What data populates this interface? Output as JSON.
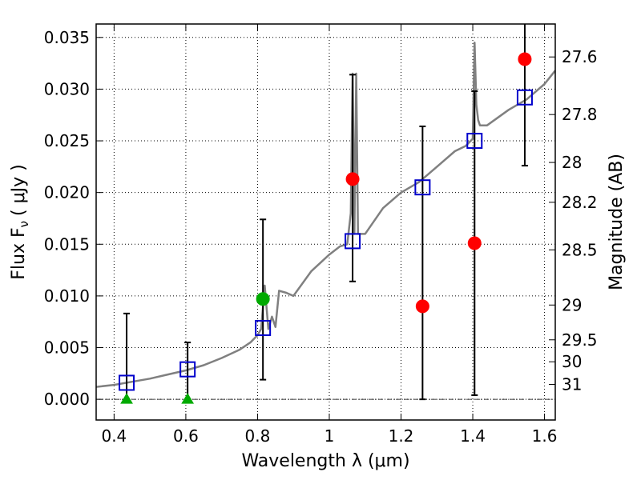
{
  "chart_data": {
    "type": "scatter",
    "xlabel": "Wavelength  λ (μm)",
    "ylabel": "Flux  F",
    "ylabel_sub": "ν",
    "ylabel_unit": "( μJy )",
    "y2label": "Magnitude (AB)",
    "xlim": [
      0.35,
      1.63
    ],
    "ylim": [
      -0.002,
      0.0363
    ],
    "grid": true,
    "x_ticks": [
      0.4,
      0.6,
      0.8,
      1.0,
      1.2,
      1.4,
      1.6
    ],
    "x_tick_labels": [
      "0.4",
      "0.6",
      "0.8",
      "1",
      "1.2",
      "1.4",
      "1.6"
    ],
    "y_ticks": [
      0.0,
      0.005,
      0.01,
      0.015,
      0.02,
      0.025,
      0.03,
      0.035
    ],
    "y_tick_labels": [
      "0.000",
      "0.005",
      "0.010",
      "0.015",
      "0.020",
      "0.025",
      "0.030",
      "0.035"
    ],
    "y2_tick_labels": [
      "27.6",
      "27.8",
      "28",
      "28.2",
      "28.5",
      "29",
      "29.5",
      "30",
      "31"
    ],
    "model_spectrum": {
      "color": "#808080",
      "x": [
        0.35,
        0.4,
        0.45,
        0.5,
        0.55,
        0.6,
        0.65,
        0.7,
        0.75,
        0.78,
        0.8,
        0.81,
        0.82,
        0.83,
        0.84,
        0.85,
        0.86,
        0.88,
        0.9,
        0.95,
        1.0,
        1.03,
        1.05,
        1.06,
        1.065,
        1.07,
        1.075,
        1.08,
        1.1,
        1.15,
        1.2,
        1.25,
        1.3,
        1.35,
        1.38,
        1.4,
        1.405,
        1.41,
        1.415,
        1.42,
        1.44,
        1.5,
        1.55,
        1.6,
        1.63
      ],
      "y": [
        0.0012,
        0.0014,
        0.0017,
        0.002,
        0.0024,
        0.0028,
        0.0033,
        0.004,
        0.0048,
        0.0055,
        0.0062,
        0.0068,
        0.011,
        0.0068,
        0.008,
        0.007,
        0.0105,
        0.0103,
        0.01,
        0.0124,
        0.014,
        0.0148,
        0.015,
        0.018,
        0.0315,
        0.016,
        0.0315,
        0.016,
        0.016,
        0.0185,
        0.02,
        0.021,
        0.0225,
        0.024,
        0.0245,
        0.0252,
        0.0345,
        0.0285,
        0.027,
        0.0265,
        0.0265,
        0.028,
        0.029,
        0.0305,
        0.0318
      ]
    },
    "series": [
      {
        "name": "",
        "marker": "square",
        "color": "#0000cc",
        "x": [
          0.435,
          0.605,
          0.815,
          1.065,
          1.26,
          1.405,
          1.545
        ],
        "y": [
          0.0016,
          0.0029,
          0.0069,
          0.0153,
          0.0205,
          0.025,
          0.0292
        ]
      },
      {
        "name": "",
        "marker": "circle",
        "color": "#ff0000",
        "x": [
          1.065,
          1.26,
          1.405,
          1.545
        ],
        "y": [
          0.0213,
          0.009,
          0.0151,
          0.0329
        ],
        "yerr_low": [
          0.0114,
          0.0,
          0.0004,
          0.0226
        ],
        "yerr_high": [
          0.0314,
          0.0264,
          0.0298,
          0.0363
        ]
      },
      {
        "name": "",
        "marker": "circle",
        "color": "#00aa00",
        "x": [
          0.815
        ],
        "y": [
          0.0097
        ],
        "yerr_low": [
          0.0019
        ],
        "yerr_high": [
          0.0174
        ]
      },
      {
        "name": "",
        "marker": "triangle",
        "color": "#00aa00",
        "x": [
          0.435,
          0.605
        ],
        "y": [
          0.0,
          0.0
        ],
        "yerr_low": [
          0.0,
          0.0
        ],
        "yerr_high": [
          0.0083,
          0.0055
        ]
      }
    ]
  }
}
